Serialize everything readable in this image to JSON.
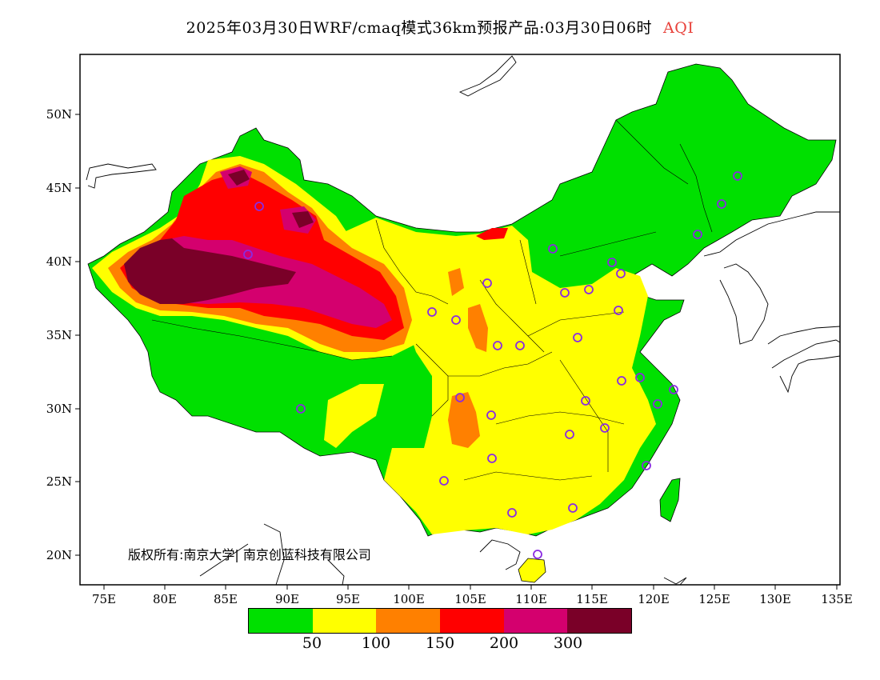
{
  "title": {
    "main": "2025年03月30日WRF/cmaq模式36km预报产品:03月30日06时",
    "variable": "AQI"
  },
  "axes": {
    "x_labels": [
      "75E",
      "80E",
      "85E",
      "90E",
      "95E",
      "100E",
      "105E",
      "110E",
      "115E",
      "120E",
      "125E",
      "130E",
      "135E"
    ],
    "y_labels": [
      "50N",
      "45N",
      "40N",
      "35N",
      "30N",
      "25N",
      "20N"
    ]
  },
  "copyright": "版权所有:南京大学| 南京创蓝科技有限公司",
  "legend": {
    "colors": [
      "#00e000",
      "#ffff00",
      "#ff8000",
      "#ff0000",
      "#d4006e",
      "#7a0028"
    ],
    "labels": [
      "50",
      "100",
      "150",
      "200",
      "300"
    ]
  },
  "colors": {
    "frame": "#000000",
    "station_marker": "#8a2be2",
    "sea": "#ffffff"
  }
}
